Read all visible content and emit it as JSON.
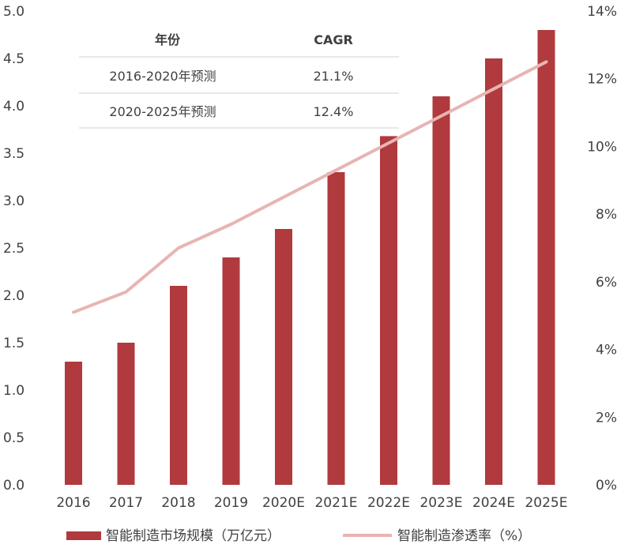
{
  "chart_data": {
    "type": "bar",
    "categories": [
      "2016",
      "2017",
      "2018",
      "2019",
      "2020E",
      "2021E",
      "2022E",
      "2023E",
      "2024E",
      "2025E"
    ],
    "series": [
      {
        "name": "智能制造市场规模（万亿元）",
        "type": "bar",
        "axis": "left",
        "color": "#b03a3d",
        "values": [
          1.3,
          1.5,
          2.1,
          2.4,
          2.7,
          3.3,
          3.68,
          4.1,
          4.5,
          4.8
        ]
      },
      {
        "name": "智能制造渗透率（%）",
        "type": "line",
        "axis": "right",
        "color": "#e8b4b4",
        "values": [
          5.1,
          5.7,
          7.0,
          7.7,
          8.5,
          9.3,
          10.1,
          10.9,
          11.7,
          12.5
        ]
      }
    ],
    "y_left": {
      "ylim": [
        0,
        5
      ],
      "ticks": [
        "0.0",
        "0.5",
        "1.0",
        "1.5",
        "2.0",
        "2.5",
        "3.0",
        "3.5",
        "4.0",
        "4.5",
        "5.0"
      ]
    },
    "y_right": {
      "ylim": [
        0,
        14
      ],
      "ticks": [
        "0%",
        "2%",
        "4%",
        "6%",
        "8%",
        "10%",
        "12%",
        "14%"
      ]
    },
    "grid": false,
    "legend_position": "bottom",
    "table": {
      "headers": [
        "年份",
        "CAGR"
      ],
      "rows": [
        [
          "2016-2020年预测",
          "21.1%"
        ],
        [
          "2020-2025年预测",
          "12.4%"
        ]
      ]
    }
  }
}
